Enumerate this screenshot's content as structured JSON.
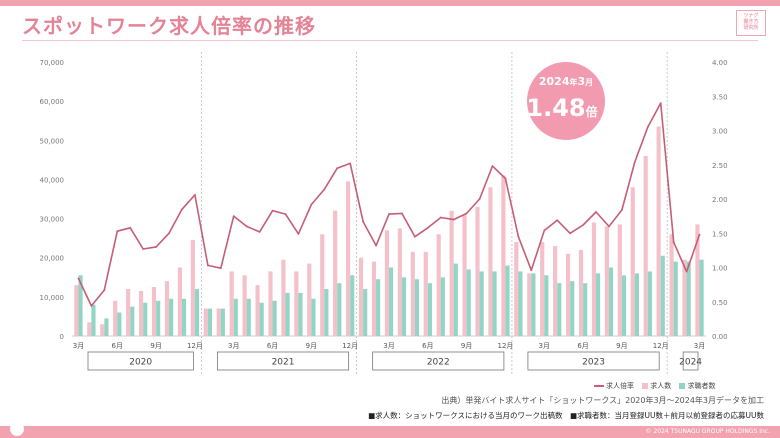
{
  "header": {
    "title": "スポットワーク求人倍率の推移",
    "logo_lines": [
      "ツナグ",
      "働き方",
      "研究所"
    ]
  },
  "colors": {
    "accent": "#e48296",
    "line": "#c45e77",
    "bar_jobs": "#f4c0c9",
    "bar_seekers": "#93d5c5",
    "callout": "#f29bb0"
  },
  "chart_data": {
    "type": "bar",
    "y_left_ticks": [
      "70,000",
      "60,000",
      "50,000",
      "40,000",
      "30,000",
      "20,000",
      "10,000",
      "0"
    ],
    "y_right_ticks": [
      "4.00",
      "3.50",
      "3.00",
      "2.50",
      "2.00",
      "1.50",
      "1.00",
      "0.50",
      "0.00"
    ],
    "ylim_left": [
      0,
      70000
    ],
    "ylim_right": [
      0,
      4.0
    ],
    "month_labels": [
      "3月",
      "6月",
      "9月",
      "12月",
      "3月",
      "6月",
      "9月",
      "12月",
      "3月",
      "6月",
      "9月",
      "12月",
      "3月",
      "6月",
      "9月",
      "12月",
      "3月"
    ],
    "month_label_index": [
      0,
      3,
      6,
      9,
      12,
      15,
      18,
      21,
      24,
      27,
      30,
      33,
      36,
      39,
      42,
      45,
      48
    ],
    "years": [
      {
        "label": "2020",
        "start": 0,
        "end": 9
      },
      {
        "label": "2021",
        "start": 10,
        "end": 21
      },
      {
        "label": "2022",
        "start": 22,
        "end": 33
      },
      {
        "label": "2023",
        "start": 34,
        "end": 45
      },
      {
        "label": "2024",
        "start": 46,
        "end": 48
      }
    ],
    "series": [
      {
        "name": "求人数",
        "values": [
          13000,
          3500,
          3000,
          9000,
          12000,
          11500,
          12500,
          14000,
          17500,
          24500,
          7000,
          7000,
          16500,
          15500,
          13000,
          16500,
          19500,
          16500,
          18500,
          26000,
          32000,
          39500,
          20000,
          19000,
          27000,
          27500,
          21500,
          21500,
          26000,
          32000,
          31000,
          33000,
          38000,
          41000,
          24000,
          16000,
          24000,
          23000,
          21000,
          22000,
          29000,
          28000,
          28500,
          38000,
          46000,
          53500,
          26000,
          19500,
          28500
        ]
      },
      {
        "name": "求職者数",
        "values": [
          15500,
          8000,
          4500,
          6000,
          7500,
          8500,
          9000,
          9500,
          9500,
          12000,
          7000,
          7000,
          9500,
          9500,
          8500,
          9000,
          11000,
          11000,
          9500,
          12000,
          13500,
          15500,
          12000,
          14500,
          17500,
          15000,
          14500,
          13500,
          15000,
          18500,
          17000,
          16500,
          16500,
          18000,
          16500,
          16000,
          15500,
          13500,
          14000,
          13500,
          16000,
          17500,
          15500,
          16000,
          16500,
          20500,
          19000,
          19000,
          19500
        ]
      },
      {
        "name": "求人倍率",
        "values": [
          0.84,
          0.44,
          0.67,
          1.53,
          1.58,
          1.27,
          1.3,
          1.5,
          1.85,
          2.06,
          1.03,
          0.99,
          1.75,
          1.6,
          1.52,
          1.83,
          1.78,
          1.49,
          1.92,
          2.14,
          2.45,
          2.52,
          1.67,
          1.32,
          1.78,
          1.79,
          1.45,
          1.58,
          1.73,
          1.7,
          1.79,
          2.0,
          2.48,
          2.3,
          1.45,
          0.96,
          1.54,
          1.69,
          1.5,
          1.62,
          1.81,
          1.6,
          1.84,
          2.54,
          3.05,
          3.4,
          1.37,
          0.94,
          1.48
        ]
      }
    ],
    "legend": [
      "求人倍率",
      "求人数",
      "求職者数"
    ],
    "legend_position": "bottom-right"
  },
  "callout": {
    "year": "2024",
    "year_unit": "年",
    "month": "3",
    "month_unit": "月",
    "value": "1.48",
    "value_unit": "倍"
  },
  "footer": {
    "source": "出典）単発バイト求人サイト「ショットワークス」2020年3月〜2024年3月データを加工",
    "note": "■求人数：ショットワークスにおける当月のワーク出稿数　■求職者数：当月登録UU数＋前月以前登録者の応募UU数",
    "copyright": "© 2024 TSUNAGU GROUP HOLDINGS Inc."
  }
}
